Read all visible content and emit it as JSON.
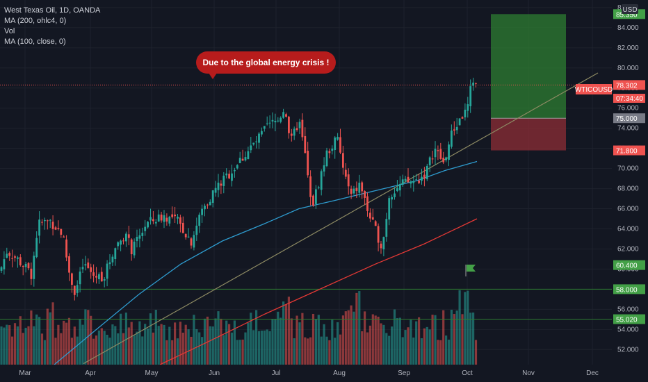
{
  "legend": {
    "symbol": "West Texas Oil, 1D, OANDA",
    "ma200": "MA (200, ohlc4, 0)",
    "vol": "Vol",
    "ma100": "MA (100, close, 0)"
  },
  "currency": "USD",
  "ticker": "WTICOUSD",
  "callout": "Due to the global energy crisis !",
  "countdown": "07:34:40",
  "colors": {
    "background": "#131722",
    "up": "#26a69a",
    "down": "#ef5350",
    "ma100": "#2e9ccf",
    "ma200": "#e53935",
    "trendline": "#8d8a63",
    "target": "#2e7d32",
    "stop": "#8e2e36"
  },
  "chart_data": {
    "type": "candlestick",
    "ylim": [
      50.5,
      86.2
    ],
    "y_ticks": [
      52,
      54,
      56,
      58,
      60,
      62,
      64,
      66,
      68,
      70,
      72,
      74,
      76,
      78,
      80,
      82,
      84,
      86
    ],
    "y_tick_labels": [
      "52.000",
      "54.000",
      "56.000",
      "58.000",
      "60.000",
      "62.000",
      "64.000",
      "66.000",
      "68.000",
      "70.000",
      "72.000",
      "74.000",
      "76.000",
      "78.000",
      "80.000",
      "82.000",
      "84.000",
      "86"
    ],
    "x_labels": [
      "Mar",
      "Apr",
      "May",
      "Jun",
      "Jul",
      "Aug",
      "Sep",
      "Oct",
      "Nov",
      "Dec"
    ],
    "last_price": 78.302,
    "price_tags": [
      {
        "label": "85.350",
        "value": 85.35,
        "color": "#43a047"
      },
      {
        "label": "78.302",
        "value": 78.302,
        "color": "#ef5350"
      },
      {
        "label": "75.000",
        "value": 75.0,
        "color": "#787b86"
      },
      {
        "label": "71.800",
        "value": 71.8,
        "color": "#ef5350"
      },
      {
        "label": "60.400",
        "value": 60.4,
        "color": "#43a047"
      },
      {
        "label": "58.000",
        "value": 58.0,
        "color": "#43a047"
      },
      {
        "label": "55.020",
        "value": 55.02,
        "color": "#43a047"
      }
    ],
    "horizontal_lines": [
      58.0,
      55.02
    ],
    "position": {
      "entry": 75.0,
      "target": 85.35,
      "stop": 71.8
    },
    "close_anchors": [
      {
        "x": 0,
        "y": 59.8
      },
      {
        "x": 10,
        "y": 61.8
      },
      {
        "x": 25,
        "y": 61.0
      },
      {
        "x": 45,
        "y": 59.5
      },
      {
        "x": 55,
        "y": 64.5
      },
      {
        "x": 72,
        "y": 64.8
      },
      {
        "x": 90,
        "y": 63.5
      },
      {
        "x": 100,
        "y": 59.5
      },
      {
        "x": 108,
        "y": 57.6
      },
      {
        "x": 120,
        "y": 60.5
      },
      {
        "x": 135,
        "y": 59.3
      },
      {
        "x": 150,
        "y": 59.3
      },
      {
        "x": 165,
        "y": 62.2
      },
      {
        "x": 180,
        "y": 63.5
      },
      {
        "x": 190,
        "y": 61.8
      },
      {
        "x": 210,
        "y": 64.5
      },
      {
        "x": 235,
        "y": 65.3
      },
      {
        "x": 255,
        "y": 64.8
      },
      {
        "x": 275,
        "y": 62.8
      },
      {
        "x": 290,
        "y": 65.8
      },
      {
        "x": 310,
        "y": 68.0
      },
      {
        "x": 330,
        "y": 69.5
      },
      {
        "x": 350,
        "y": 71.2
      },
      {
        "x": 370,
        "y": 72.8
      },
      {
        "x": 385,
        "y": 74.2
      },
      {
        "x": 400,
        "y": 74.8
      },
      {
        "x": 410,
        "y": 76.2
      },
      {
        "x": 418,
        "y": 72.5
      },
      {
        "x": 430,
        "y": 74.8
      },
      {
        "x": 440,
        "y": 70.8
      },
      {
        "x": 448,
        "y": 66.0
      },
      {
        "x": 458,
        "y": 68.5
      },
      {
        "x": 470,
        "y": 71.5
      },
      {
        "x": 485,
        "y": 73.0
      },
      {
        "x": 495,
        "y": 69.5
      },
      {
        "x": 505,
        "y": 67.2
      },
      {
        "x": 518,
        "y": 68.5
      },
      {
        "x": 530,
        "y": 65.5
      },
      {
        "x": 540,
        "y": 63.8
      },
      {
        "x": 550,
        "y": 62.2
      },
      {
        "x": 560,
        "y": 67.5
      },
      {
        "x": 580,
        "y": 68.5
      },
      {
        "x": 600,
        "y": 68.8
      },
      {
        "x": 612,
        "y": 69.5
      },
      {
        "x": 625,
        "y": 72.0
      },
      {
        "x": 638,
        "y": 70.5
      },
      {
        "x": 650,
        "y": 73.5
      },
      {
        "x": 662,
        "y": 75.0
      },
      {
        "x": 672,
        "y": 75.8
      },
      {
        "x": 680,
        "y": 79.0
      },
      {
        "x": 686,
        "y": 78.302
      }
    ],
    "ma100_anchors": [
      {
        "x": 78,
        "y": 50.5
      },
      {
        "x": 130,
        "y": 53.5
      },
      {
        "x": 200,
        "y": 57.5
      },
      {
        "x": 260,
        "y": 60.5
      },
      {
        "x": 320,
        "y": 62.8
      },
      {
        "x": 380,
        "y": 64.5
      },
      {
        "x": 430,
        "y": 66.0
      },
      {
        "x": 480,
        "y": 66.8
      },
      {
        "x": 540,
        "y": 67.8
      },
      {
        "x": 600,
        "y": 68.8
      },
      {
        "x": 640,
        "y": 69.8
      },
      {
        "x": 686,
        "y": 70.7
      }
    ],
    "ma200_anchors": [
      {
        "x": 230,
        "y": 50.5
      },
      {
        "x": 300,
        "y": 52.8
      },
      {
        "x": 380,
        "y": 55.5
      },
      {
        "x": 460,
        "y": 58.0
      },
      {
        "x": 540,
        "y": 60.5
      },
      {
        "x": 610,
        "y": 62.5
      },
      {
        "x": 686,
        "y": 65.0
      }
    ],
    "trendline": {
      "x1": 120,
      "y1": 50.6,
      "x2": 860,
      "y2": 79.5
    },
    "volume_color_pattern": "seeded"
  }
}
